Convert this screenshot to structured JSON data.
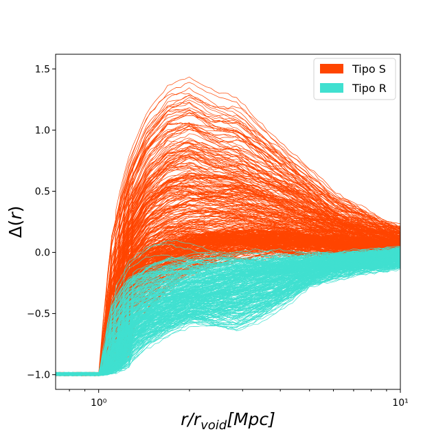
{
  "chart_data": {
    "type": "line",
    "title": "",
    "xlabel": "r/r_void [Mpc]",
    "ylabel": "Δ(r)",
    "xscale": "log",
    "xlim": [
      0.72,
      10
    ],
    "ylim": [
      -1.12,
      1.62
    ],
    "grid": false,
    "legend_position": "top-right",
    "x_ticks": [
      {
        "value": 1,
        "label": "10⁰"
      },
      {
        "value": 10,
        "label": "10¹"
      }
    ],
    "y_ticks": [
      {
        "value": -1.0,
        "label": "−1.0"
      },
      {
        "value": -0.5,
        "label": "−0.5"
      },
      {
        "value": 0.0,
        "label": "0.0"
      },
      {
        "value": 0.5,
        "label": "0.5"
      },
      {
        "value": 1.0,
        "label": "1.0"
      },
      {
        "value": 1.5,
        "label": "1.5"
      }
    ],
    "x": [
      0.72,
      1.0,
      1.1,
      1.25,
      1.45,
      1.7,
      2.0,
      2.4,
      2.9,
      3.5,
      4.2,
      5.0,
      6.0,
      7.2,
      8.5,
      10.0
    ],
    "series": [
      {
        "name": "Tipo S",
        "color": "#ff4500",
        "line_count": 400,
        "values": [
          -1.0,
          -1.0,
          -0.55,
          -0.2,
          0.0,
          0.08,
          0.12,
          0.14,
          0.15,
          0.15,
          0.14,
          0.12,
          0.1,
          0.08,
          0.06,
          0.05
        ],
        "upper_envelope": [
          -0.9,
          -0.9,
          0.2,
          0.8,
          1.22,
          1.45,
          1.5,
          1.35,
          1.3,
          1.1,
          0.9,
          0.7,
          0.5,
          0.4,
          0.3,
          0.22
        ],
        "lower_envelope": [
          -1.0,
          -1.0,
          -0.95,
          -0.7,
          -0.5,
          -0.35,
          -0.2,
          -0.1,
          -0.05,
          -0.05,
          -0.04,
          -0.03,
          -0.03,
          -0.02,
          -0.02,
          -0.02
        ]
      },
      {
        "name": "Tipo R",
        "color": "#40e0d0",
        "line_count": 300,
        "values": [
          -1.0,
          -1.0,
          -0.75,
          -0.55,
          -0.45,
          -0.38,
          -0.32,
          -0.27,
          -0.22,
          -0.18,
          -0.14,
          -0.11,
          -0.08,
          -0.06,
          -0.04,
          -0.02
        ],
        "upper_envelope": [
          -0.95,
          -0.95,
          -0.3,
          -0.05,
          0.05,
          0.08,
          0.06,
          0.04,
          0.02,
          0.0,
          -0.01,
          -0.01,
          -0.01,
          0.0,
          0.0,
          0.02
        ],
        "lower_envelope": [
          -1.0,
          -1.0,
          -1.0,
          -0.95,
          -0.8,
          -0.7,
          -0.62,
          -0.65,
          -0.68,
          -0.58,
          -0.45,
          -0.3,
          -0.22,
          -0.17,
          -0.15,
          -0.12
        ]
      }
    ]
  },
  "legend": {
    "items": [
      {
        "label": "Tipo S",
        "color": "#ff4500"
      },
      {
        "label": "Tipo R",
        "color": "#40e0d0"
      }
    ]
  }
}
